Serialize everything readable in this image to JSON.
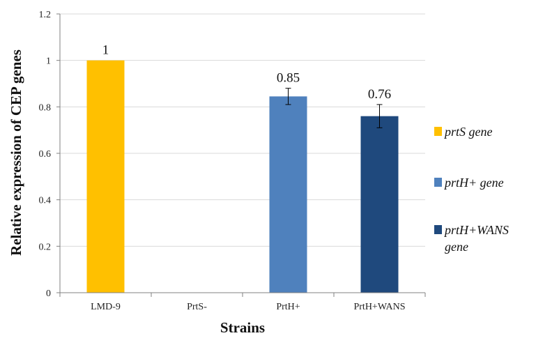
{
  "chart_data": {
    "type": "bar",
    "categories": [
      "LMD-9",
      "PrtS-",
      "PrtH+",
      "PrtH+WANS"
    ],
    "series": [
      {
        "name": "prtS gene",
        "color": "#FFC000",
        "values": [
          1,
          null,
          null,
          null
        ]
      },
      {
        "name": "prtH+ gene",
        "color": "#4F81BD",
        "values": [
          null,
          null,
          0.845,
          null
        ]
      },
      {
        "name": "prtH+WANS gene",
        "color": "#1F497D",
        "values": [
          null,
          null,
          null,
          0.76
        ]
      }
    ],
    "data_labels": [
      "1",
      "",
      "0.85",
      "0.76"
    ],
    "error_bars": [
      null,
      null,
      [
        0.81,
        0.88
      ],
      [
        0.71,
        0.81
      ]
    ],
    "xlabel": "Strains",
    "ylabel": "Relative expression of CEP genes",
    "ylim": [
      0,
      1.2
    ],
    "yticks": [
      "0",
      "0.2",
      "0.4",
      "0.6",
      "0.8",
      "1",
      "1.2"
    ],
    "grid": true,
    "legend_position": "right",
    "legend": [
      {
        "lines": [
          "prtS gene"
        ],
        "color": "#FFC000"
      },
      {
        "lines": [
          "prtH+ gene"
        ],
        "color": "#4F81BD"
      },
      {
        "lines": [
          "prtH+WANS",
          "gene"
        ],
        "color": "#1F497D"
      }
    ]
  }
}
